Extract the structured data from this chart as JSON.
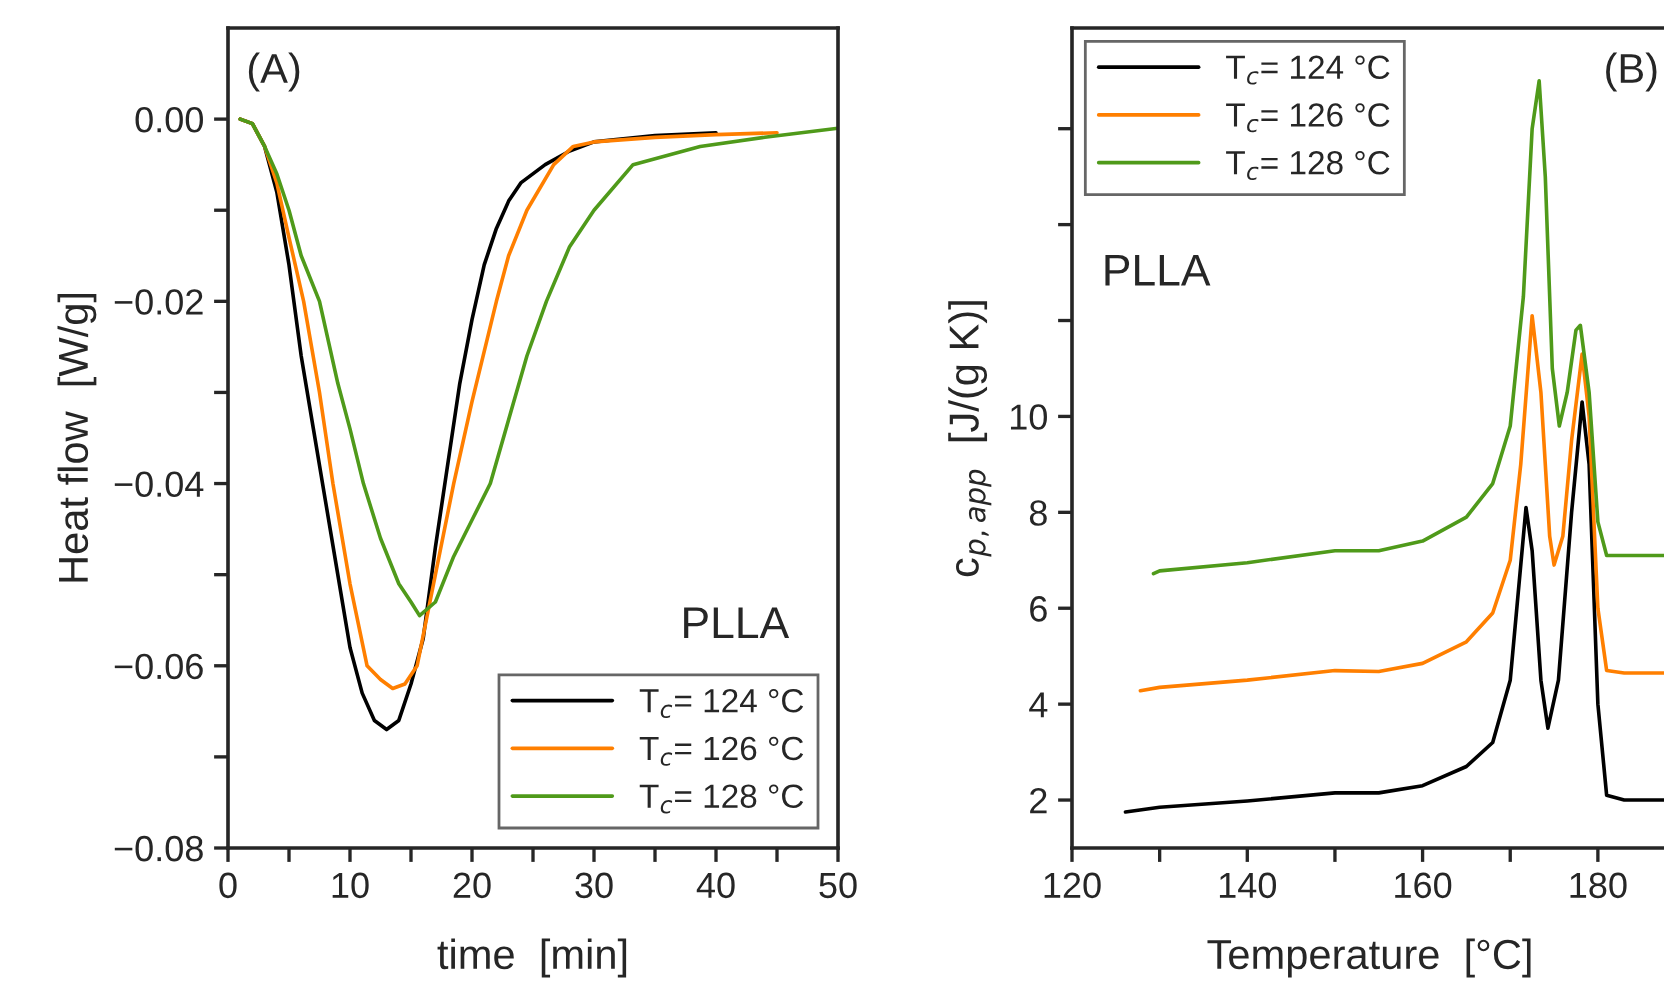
{
  "chart_data": [
    {
      "type": "line",
      "xlabel": "time  [min]",
      "ylabel": "Heat flow  [W/g]",
      "xlim": [
        0,
        50
      ],
      "ylim": [
        -0.08,
        0.01
      ],
      "xticks": [
        0,
        {
          "value": 5,
          "label": null
        },
        10,
        {
          "value": 15,
          "label": null
        },
        20,
        {
          "value": 25,
          "label": null
        },
        30,
        {
          "value": 35,
          "label": null
        },
        40,
        {
          "value": 45,
          "label": null
        },
        50
      ],
      "yticks": [
        {
          "value": -0.08,
          "label": "−0.08"
        },
        {
          "value": -0.07,
          "label": null
        },
        {
          "value": -0.06,
          "label": "−0.06"
        },
        {
          "value": -0.05,
          "label": null
        },
        {
          "value": -0.04,
          "label": "−0.04"
        },
        {
          "value": -0.03,
          "label": null
        },
        {
          "value": -0.02,
          "label": "−0.02"
        },
        {
          "value": -0.01,
          "label": null
        },
        {
          "value": 0,
          "label": "0.00"
        }
      ],
      "legend": "bottom right",
      "grid": false,
      "annotations": [
        "(A)",
        "PLLA"
      ],
      "series": [
        {
          "name": "T$_{c}$= 124 °C",
          "color": "#000000",
          "x": [
            1,
            2,
            3,
            4,
            5,
            6,
            7,
            8,
            9,
            10,
            11,
            12,
            13,
            14,
            15,
            16,
            17,
            18,
            19,
            20,
            21,
            22,
            23,
            24,
            26,
            28,
            30,
            35,
            40
          ],
          "values": [
            0,
            -0.0005,
            -0.003,
            -0.008,
            -0.016,
            -0.026,
            -0.034,
            -0.042,
            -0.05,
            -0.058,
            -0.063,
            -0.066,
            -0.067,
            -0.066,
            -0.062,
            -0.057,
            -0.047,
            -0.038,
            -0.029,
            -0.022,
            -0.016,
            -0.012,
            -0.009,
            -0.007,
            -0.005,
            -0.0035,
            -0.0025,
            -0.0018,
            -0.0015
          ]
        },
        {
          "name": "T$_{c}$= 126 °C",
          "color": "#ff7f00",
          "x": [
            1,
            2,
            3,
            4,
            5,
            6.2,
            7.5,
            8.6,
            10,
            11.4,
            12.5,
            13.5,
            14.5,
            15.5,
            17,
            18.5,
            20,
            22,
            23,
            24.5,
            26.7,
            28.3,
            30,
            35,
            40,
            45
          ],
          "values": [
            0,
            -0.0005,
            -0.003,
            -0.007,
            -0.013,
            -0.02,
            -0.03,
            -0.04,
            -0.051,
            -0.06,
            -0.0615,
            -0.0625,
            -0.062,
            -0.06,
            -0.05,
            -0.04,
            -0.031,
            -0.02,
            -0.015,
            -0.01,
            -0.005,
            -0.003,
            -0.0025,
            -0.002,
            -0.0017,
            -0.0015
          ]
        },
        {
          "name": "T$_{c}$= 128 °C",
          "color": "#4f9a1a",
          "x": [
            1,
            2,
            3,
            4,
            5,
            6,
            7.5,
            9,
            10,
            11.1,
            12.5,
            14,
            15,
            15.7,
            17,
            18.5,
            20,
            21.5,
            23,
            24.5,
            26.1,
            28,
            30,
            33.2,
            38.7,
            44,
            50
          ],
          "values": [
            0,
            -0.0005,
            -0.003,
            -0.006,
            -0.01,
            -0.015,
            -0.02,
            -0.029,
            -0.034,
            -0.04,
            -0.046,
            -0.051,
            -0.053,
            -0.0545,
            -0.053,
            -0.048,
            -0.044,
            -0.04,
            -0.033,
            -0.026,
            -0.02,
            -0.014,
            -0.01,
            -0.005,
            -0.003,
            -0.002,
            -0.001
          ]
        }
      ]
    },
    {
      "type": "line",
      "xlabel": "Temperature  [°C]",
      "ylabel": "c$_{p,app}$  [J/(g K)]",
      "xlim": [
        120,
        188
      ],
      "ylim": [
        1,
        18.1
      ],
      "xticks": [
        120,
        {
          "value": 130,
          "label": null
        },
        140,
        {
          "value": 150,
          "label": null
        },
        160,
        {
          "value": 170,
          "label": null
        },
        180
      ],
      "yticks": [
        2,
        4,
        6,
        8,
        10,
        {
          "value": 12,
          "label": null
        },
        {
          "value": 14,
          "label": null
        },
        {
          "value": 16,
          "label": null
        }
      ],
      "legend": "top left",
      "grid": false,
      "annotations": [
        "(B)",
        "PLLA"
      ],
      "series": [
        {
          "name": "T$_{c}$= 124 °C",
          "color": "#000000",
          "x": [
            126.1,
            130,
            140,
            150,
            155,
            160,
            165,
            168,
            170,
            171,
            171.8,
            172.5,
            173.5,
            174.3,
            175.5,
            177,
            178.2,
            179,
            180,
            181,
            183,
            188
          ],
          "values": [
            1.75,
            1.85,
            1.98,
            2.15,
            2.15,
            2.3,
            2.7,
            3.2,
            4.5,
            6.5,
            8.1,
            7.2,
            4.5,
            3.5,
            4.5,
            8,
            10.3,
            9,
            4,
            2.1,
            2.0,
            2.0
          ]
        },
        {
          "name": "T$_{c}$= 126 °C",
          "color": "#ff7f00",
          "x": [
            127.8,
            130,
            140,
            150,
            155,
            160,
            165,
            168,
            170,
            171.2,
            172.5,
            173.5,
            174.5,
            175,
            176,
            177,
            178.2,
            179,
            180,
            181,
            183,
            188
          ],
          "values": [
            4.28,
            4.35,
            4.5,
            4.7,
            4.68,
            4.85,
            5.3,
            5.9,
            7,
            9,
            12.1,
            10.5,
            7.5,
            6.9,
            7.5,
            9.5,
            11.3,
            10,
            6,
            4.7,
            4.65,
            4.65
          ]
        },
        {
          "name": "T$_{c}$= 128 °C",
          "color": "#4f9a1a",
          "x": [
            129.3,
            130,
            140,
            150,
            155,
            160,
            165,
            168,
            170,
            171.5,
            172.5,
            173.3,
            174,
            174.8,
            175.6,
            176.5,
            177.5,
            178,
            179,
            180,
            181,
            188
          ],
          "values": [
            6.72,
            6.78,
            6.95,
            7.2,
            7.2,
            7.4,
            7.9,
            8.6,
            9.8,
            12.5,
            16,
            17.0,
            15,
            11,
            9.8,
            10.5,
            11.8,
            11.9,
            10.5,
            7.8,
            7.1,
            7.1
          ]
        }
      ]
    }
  ]
}
